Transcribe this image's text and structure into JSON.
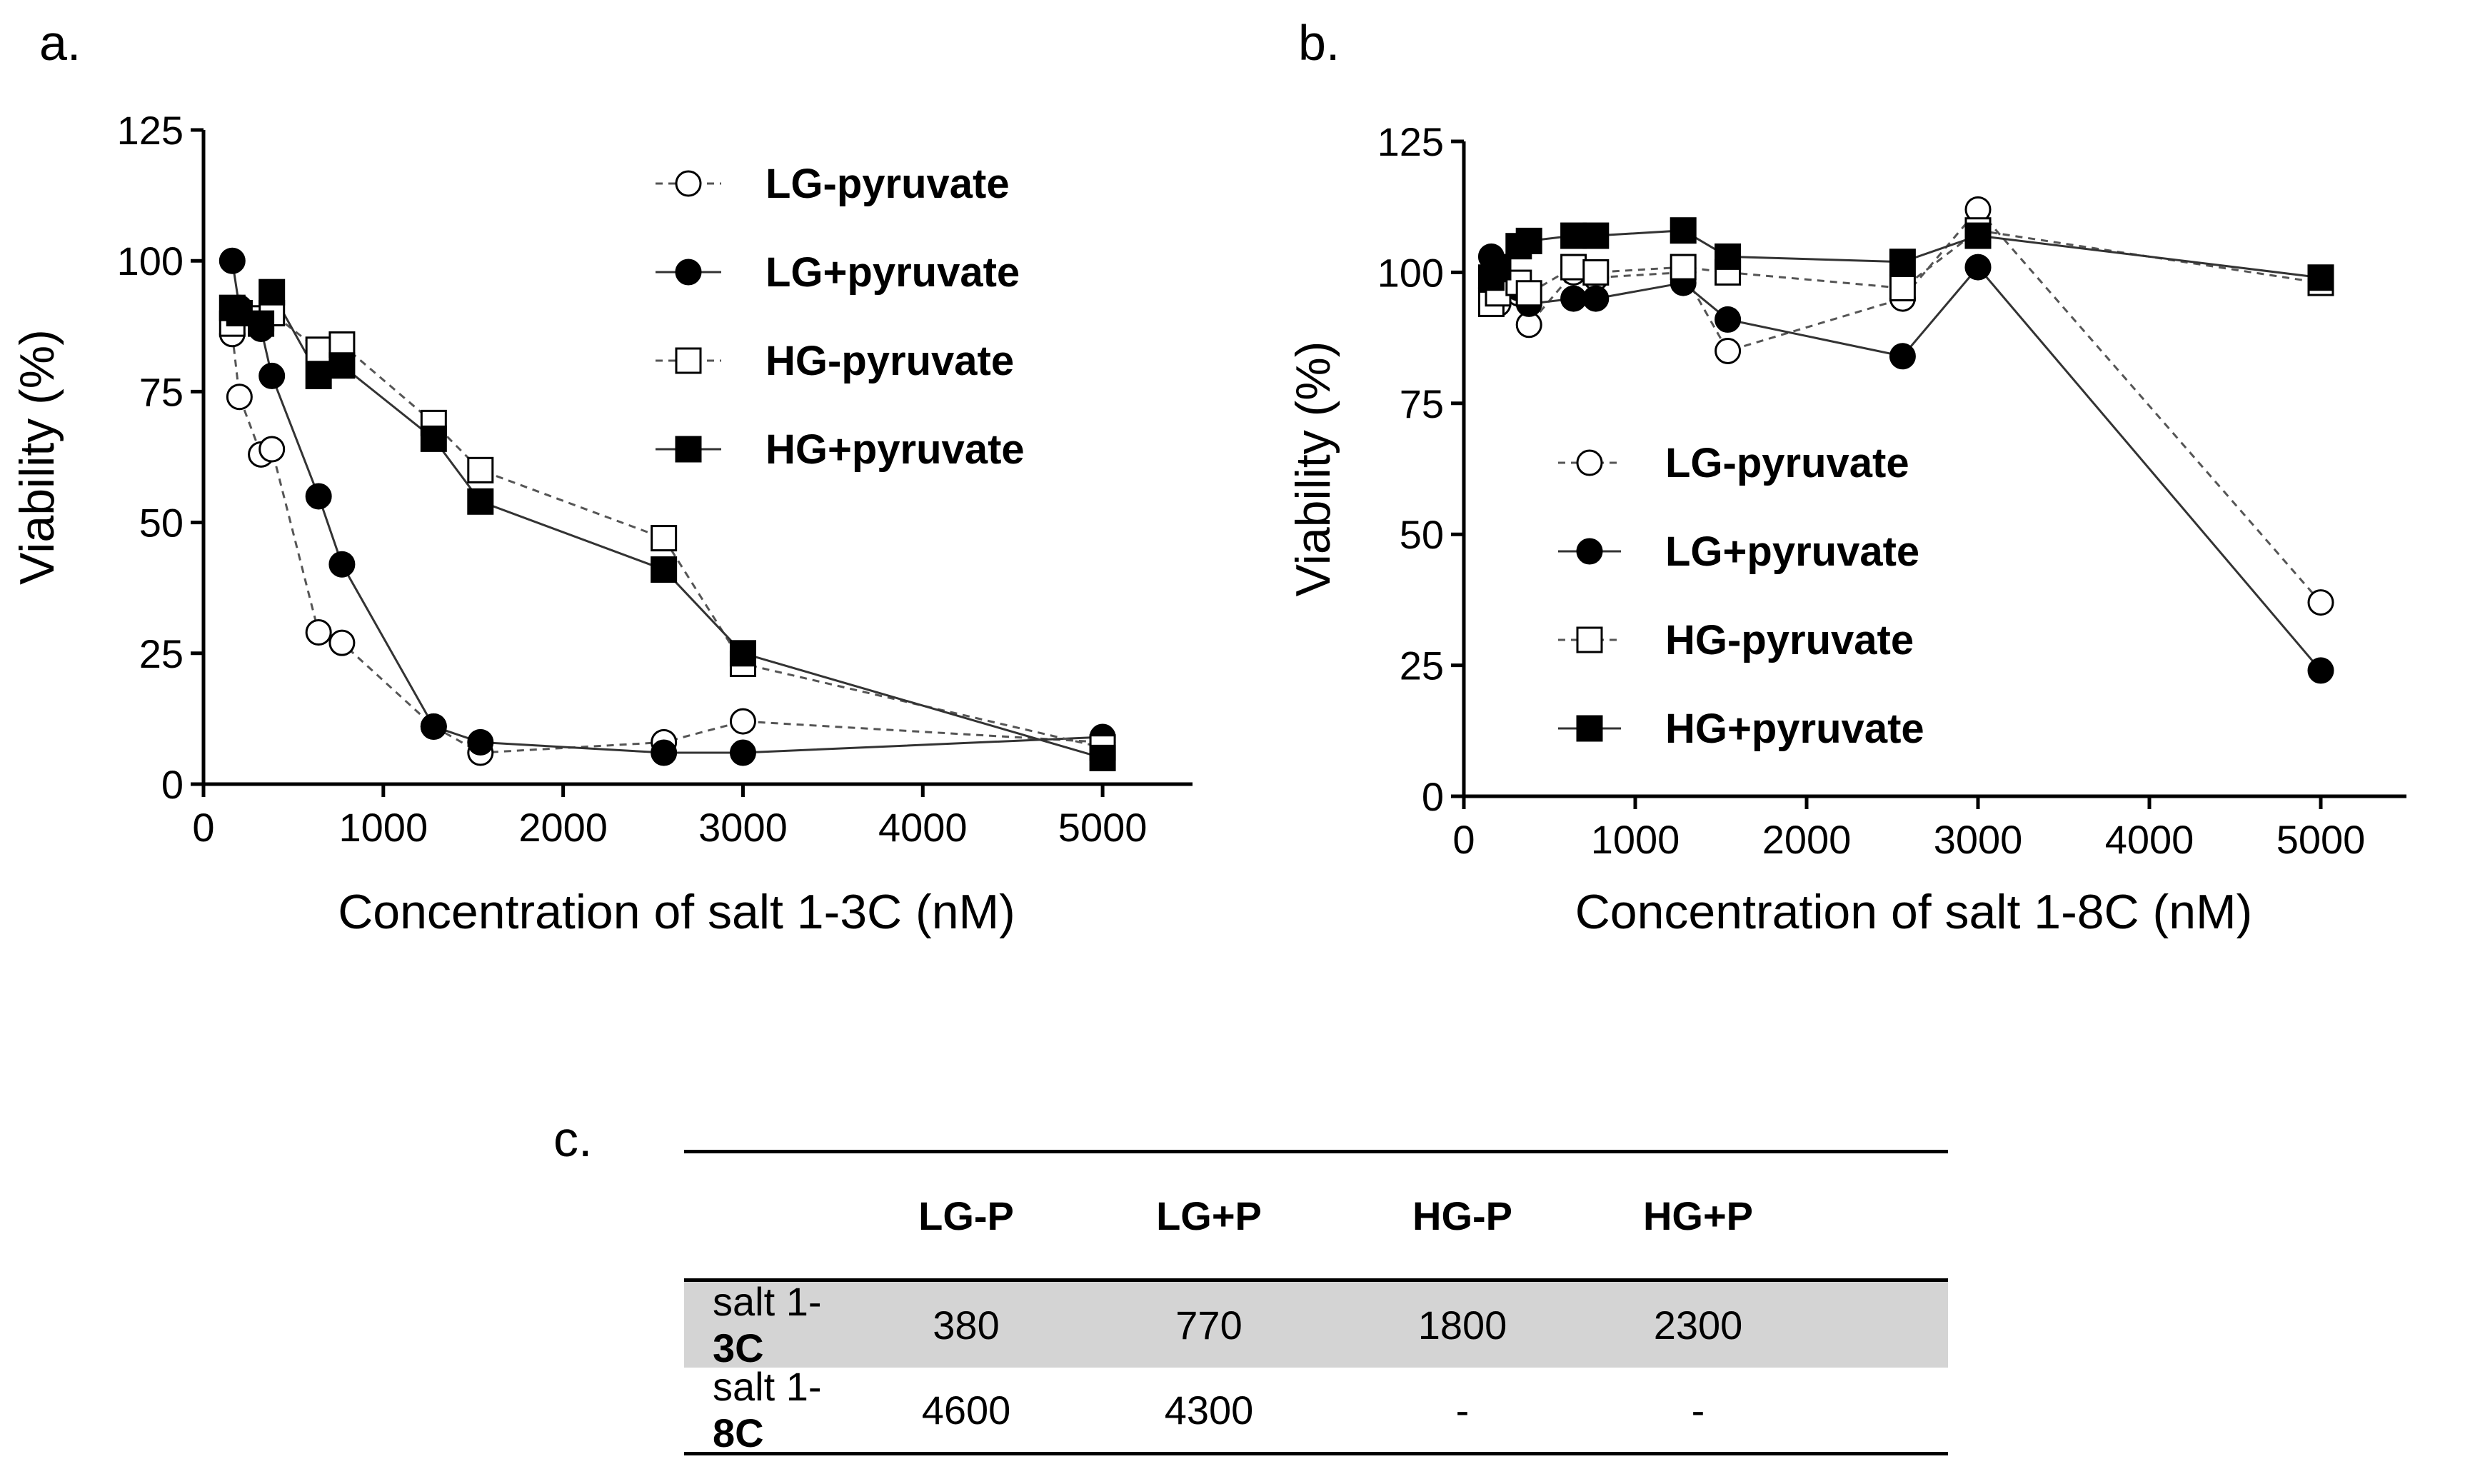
{
  "panel_labels": {
    "a": "a.",
    "b": "b.",
    "c": "c."
  },
  "chart_data": [
    {
      "type": "line",
      "panel": "a.",
      "title": "",
      "xlabel": "Concentration of salt 1-3C (nM)",
      "ylabel": "Viability (%)",
      "xlim": [
        0,
        5500
      ],
      "ylim": [
        0,
        125
      ],
      "xticks": [
        0,
        1000,
        2000,
        3000,
        4000,
        5000
      ],
      "yticks": [
        0,
        25,
        50,
        75,
        100,
        125
      ],
      "legend_position": "top-right",
      "series": [
        {
          "name": "LG-pyruvate",
          "marker": "circle-open",
          "line": "dashed",
          "x": [
            160,
            200,
            320,
            380,
            640,
            770,
            1280,
            1540,
            2560,
            3000,
            5000
          ],
          "y": [
            86,
            74,
            63,
            64,
            29,
            27,
            11,
            6,
            8,
            12,
            8
          ]
        },
        {
          "name": "LG+pyruvate",
          "marker": "circle-filled",
          "line": "solid",
          "x": [
            160,
            200,
            320,
            380,
            640,
            770,
            1280,
            1540,
            2560,
            3000,
            5000
          ],
          "y": [
            100,
            91,
            87,
            78,
            55,
            42,
            11,
            8,
            6,
            6,
            9
          ]
        },
        {
          "name": "HG-pyruvate",
          "marker": "square-open",
          "line": "dashed",
          "x": [
            160,
            200,
            320,
            380,
            640,
            770,
            1280,
            1540,
            2560,
            3000,
            5000
          ],
          "y": [
            88,
            90,
            89,
            90,
            83,
            84,
            69,
            60,
            47,
            23,
            7
          ]
        },
        {
          "name": "HG+pyruvate",
          "marker": "square-filled",
          "line": "solid",
          "x": [
            160,
            200,
            320,
            380,
            640,
            770,
            1280,
            1540,
            2560,
            3000,
            5000
          ],
          "y": [
            91,
            90,
            88,
            94,
            78,
            80,
            66,
            54,
            41,
            25,
            5
          ]
        }
      ]
    },
    {
      "type": "line",
      "panel": "b.",
      "title": "",
      "xlabel": "Concentration of salt 1-8C (nM)",
      "ylabel": "Viability (%)",
      "xlim": [
        0,
        5500
      ],
      "ylim": [
        0,
        125
      ],
      "xticks": [
        0,
        1000,
        2000,
        3000,
        4000,
        5000
      ],
      "yticks": [
        0,
        25,
        50,
        75,
        100,
        125
      ],
      "legend_position": "center-left",
      "series": [
        {
          "name": "LG-pyruvate",
          "marker": "circle-open",
          "line": "dashed",
          "x": [
            160,
            200,
            320,
            380,
            640,
            770,
            1280,
            1540,
            2560,
            3000,
            5000
          ],
          "y": [
            97,
            94,
            96,
            90,
            100,
            99,
            100,
            85,
            95,
            112,
            37
          ]
        },
        {
          "name": "LG+pyruvate",
          "marker": "circle-filled",
          "line": "solid",
          "x": [
            160,
            200,
            320,
            380,
            640,
            770,
            1280,
            1540,
            2560,
            3000,
            5000
          ],
          "y": [
            103,
            98,
            97,
            94,
            95,
            95,
            98,
            91,
            84,
            101,
            24
          ]
        },
        {
          "name": "HG-pyruvate",
          "marker": "square-open",
          "line": "dashed",
          "x": [
            160,
            200,
            320,
            380,
            640,
            770,
            1280,
            1540,
            2560,
            3000,
            5000
          ],
          "y": [
            94,
            96,
            98,
            96,
            101,
            100,
            101,
            100,
            97,
            108,
            98
          ]
        },
        {
          "name": "HG+pyruvate",
          "marker": "square-filled",
          "line": "solid",
          "x": [
            160,
            200,
            320,
            380,
            640,
            770,
            1280,
            1540,
            2560,
            3000,
            5000
          ],
          "y": [
            99,
            101,
            105,
            106,
            107,
            107,
            108,
            103,
            102,
            107,
            99
          ]
        }
      ]
    },
    {
      "type": "table",
      "panel": "c.",
      "columns": [
        "",
        "LG-P",
        "LG+P",
        "HG-P",
        "HG+P"
      ],
      "rows": [
        {
          "label_prefix": "salt 1-",
          "label_bold": "3C",
          "values": [
            "380",
            "770",
            "1800",
            "2300"
          ]
        },
        {
          "label_prefix": "salt 1-",
          "label_bold": "8C",
          "values": [
            "4600",
            "4300",
            "-",
            "-"
          ]
        }
      ]
    }
  ]
}
